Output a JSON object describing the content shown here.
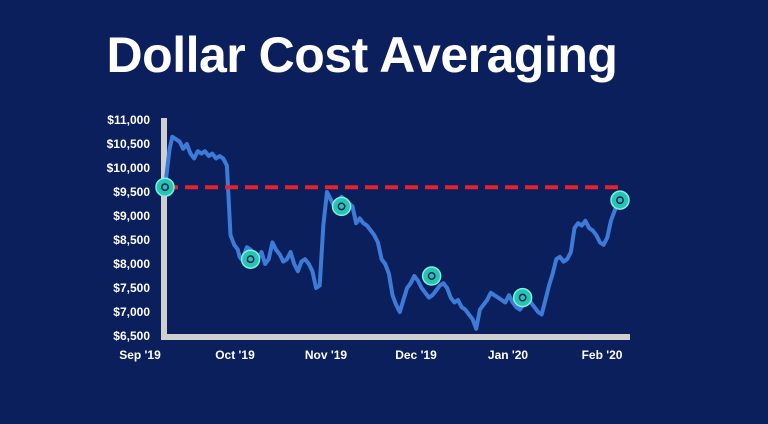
{
  "chart_data": {
    "type": "line",
    "title": "Dollar Cost Averaging",
    "xlabel": "",
    "ylabel": "",
    "x_ticks": [
      "Sep '19",
      "Oct '19",
      "Nov '19",
      "Dec '19",
      "Jan '20",
      "Feb '20"
    ],
    "y_ticks": [
      "$11,000",
      "$10,500",
      "$10,000",
      "$9,500",
      "$9,000",
      "$8,500",
      "$8,000",
      "$7,500",
      "$7,000",
      "$6,500"
    ],
    "y_tick_values": [
      11000,
      10500,
      10000,
      9500,
      9000,
      8500,
      8000,
      7500,
      7000,
      6500
    ],
    "ylim": [
      6500,
      11000
    ],
    "xlim": [
      0,
      5
    ],
    "series": [
      {
        "color": "#3d7bd9",
        "x": [
          0.0,
          0.05,
          0.08,
          0.12,
          0.16,
          0.2,
          0.24,
          0.28,
          0.32,
          0.36,
          0.4,
          0.44,
          0.48,
          0.52,
          0.56,
          0.6,
          0.64,
          0.68,
          0.72,
          0.76,
          0.8,
          0.82,
          0.84,
          0.87,
          0.9,
          0.94,
          0.98,
          1.02,
          1.06,
          1.1,
          1.14,
          1.18,
          1.22,
          1.26,
          1.3,
          1.34,
          1.38,
          1.42,
          1.46,
          1.5,
          1.54,
          1.58,
          1.62,
          1.66,
          1.7,
          1.74,
          1.78,
          1.82,
          1.86,
          1.9,
          1.94,
          1.97,
          2.0,
          2.03,
          2.06,
          2.1,
          2.14,
          2.18,
          2.22,
          2.26,
          2.3,
          2.34,
          2.38,
          2.42,
          2.46,
          2.5,
          2.54,
          2.58,
          2.62,
          2.66,
          2.7,
          2.74,
          2.78,
          2.82,
          2.86,
          2.9,
          2.94,
          2.98,
          3.02,
          3.06,
          3.1,
          3.14,
          3.18,
          3.22,
          3.26,
          3.3,
          3.34,
          3.38,
          3.42,
          3.46,
          3.5,
          3.54,
          3.58,
          3.62,
          3.66,
          3.7,
          3.74,
          3.78,
          3.82,
          3.86,
          3.9,
          3.94,
          3.98,
          4.02,
          4.06,
          4.1,
          4.14,
          4.18,
          4.22,
          4.26,
          4.3,
          4.34,
          4.38,
          4.42,
          4.46,
          4.5,
          4.54,
          4.58,
          4.62,
          4.66,
          4.7,
          4.74,
          4.78,
          4.82,
          4.86,
          4.9,
          4.94,
          4.98,
          5.0
        ],
        "y": [
          9600,
          10400,
          10650,
          10600,
          10550,
          10400,
          10500,
          10300,
          10200,
          10350,
          10300,
          10350,
          10250,
          10300,
          10200,
          10250,
          10200,
          10050,
          8600,
          8400,
          8300,
          8150,
          8100,
          8200,
          8350,
          8300,
          8200,
          8100,
          8250,
          8000,
          8100,
          8450,
          8300,
          8200,
          8050,
          8100,
          8250,
          8000,
          7850,
          8050,
          8100,
          8000,
          7850,
          7500,
          7550,
          8800,
          9500,
          9350,
          9200,
          9300,
          9400,
          9350,
          9300,
          9250,
          9200,
          8850,
          8950,
          8850,
          8800,
          8700,
          8600,
          8450,
          8100,
          8000,
          7800,
          7350,
          7150,
          7000,
          7250,
          7500,
          7600,
          7750,
          7650,
          7500,
          7400,
          7300,
          7350,
          7450,
          7550,
          7600,
          7500,
          7300,
          7200,
          7250,
          7100,
          7050,
          6950,
          6850,
          6650,
          7050,
          7150,
          7250,
          7400,
          7350,
          7300,
          7250,
          7200,
          7350,
          7200,
          7100,
          7050,
          7150,
          7300,
          7200,
          7100,
          7000,
          6950,
          7250,
          7550,
          7800,
          8100,
          8150,
          8050,
          8100,
          8250,
          8750,
          8850,
          8800,
          8900,
          8750,
          8700,
          8600,
          8450,
          8400,
          8550,
          8900,
          9100,
          9300,
          9350
        ]
      },
      {
        "color": "#e8222d",
        "dashed": true,
        "x": [
          0,
          5
        ],
        "y": [
          9600,
          9600
        ]
      }
    ],
    "markers": {
      "color": "#26c5b0",
      "x": [
        0.0,
        0.94,
        1.94,
        2.93,
        3.93,
        5.0
      ],
      "y": [
        9600,
        8100,
        9200,
        7750,
        7300,
        9330
      ]
    },
    "grid": false,
    "legend": "none"
  }
}
